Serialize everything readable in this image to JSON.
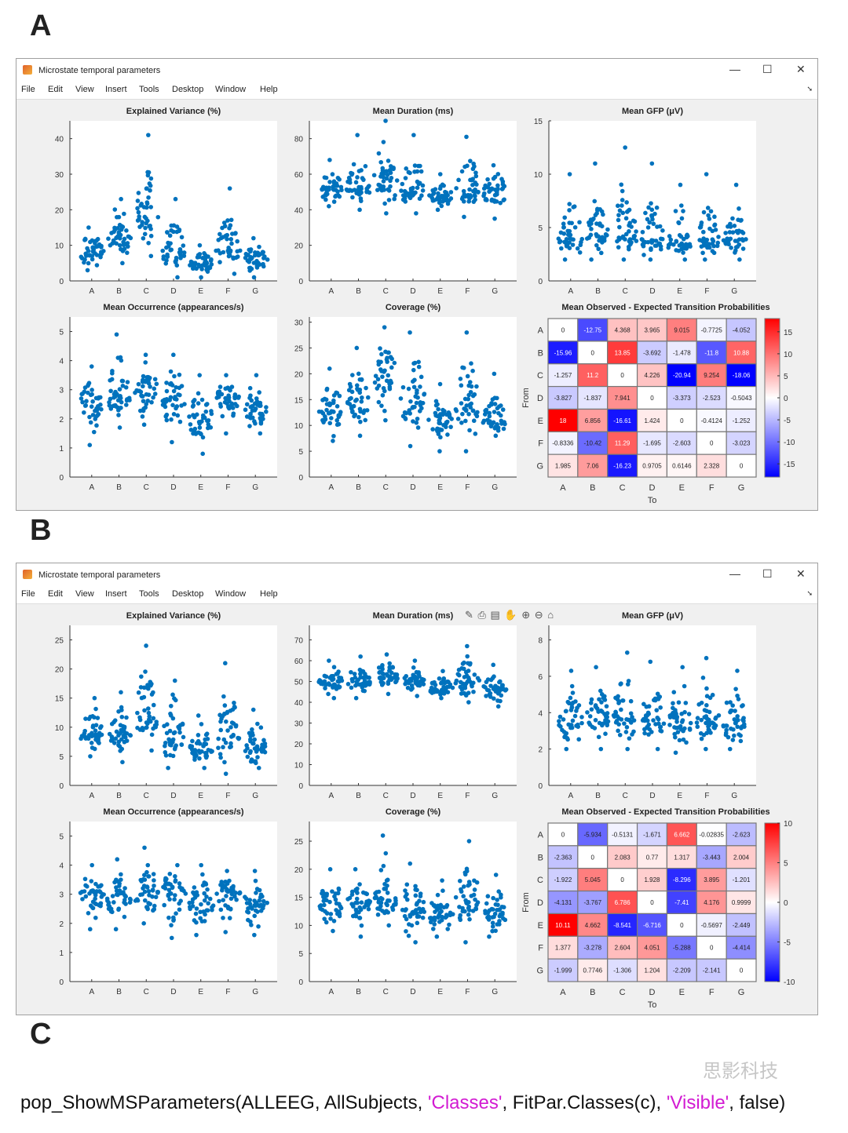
{
  "labels": {
    "A": "A",
    "B": "B",
    "C": "C"
  },
  "window": {
    "title": "Microstate temporal parameters",
    "menu": [
      "File",
      "Edit",
      "View",
      "Insert",
      "Tools",
      "Desktop",
      "Window",
      "Help"
    ],
    "minimize": "—",
    "maximize": "☐",
    "close": "✕"
  },
  "axes_toolbar": "✎ ⎙ ▤ ✋ ⊕ ⊖ ⌂",
  "code": {
    "func": "pop_ShowMSParameters(ALLEEG, AllSubjects, ",
    "s1": "'Classes'",
    "mid": ", FitPar.Classes(c), ",
    "s2": "'Visible'",
    "end": ", false)"
  },
  "watermark": "思影科技",
  "colors": {
    "dots": "#0072bd",
    "neg": "#0000ff",
    "pos": "#ff0000"
  },
  "chart_data": [
    {
      "panel": "A",
      "charts": [
        {
          "type": "scatter",
          "title": "Explained Variance (%)",
          "ylim": [
            0,
            45
          ],
          "yticks": [
            0,
            10,
            20,
            30,
            40
          ],
          "categories": [
            "A",
            "B",
            "C",
            "D",
            "E",
            "F",
            "G"
          ],
          "center": [
            8,
            12,
            18,
            8,
            5,
            9,
            6
          ],
          "min": [
            3,
            5,
            7,
            1,
            1,
            2,
            1
          ],
          "max": [
            15,
            23,
            41,
            23,
            10,
            26,
            12
          ]
        },
        {
          "type": "scatter",
          "title": "Mean Duration (ms)",
          "ylim": [
            0,
            90
          ],
          "yticks": [
            0,
            20,
            40,
            60,
            80
          ],
          "categories": [
            "A",
            "B",
            "C",
            "D",
            "E",
            "F",
            "G"
          ],
          "center": [
            52,
            53,
            57,
            52,
            48,
            52,
            50
          ],
          "min": [
            42,
            40,
            38,
            38,
            40,
            36,
            35
          ],
          "max": [
            68,
            82,
            90,
            82,
            60,
            81,
            65
          ]
        },
        {
          "type": "scatter",
          "title": "Mean GFP (μV)",
          "ylim": [
            0,
            15
          ],
          "yticks": [
            0,
            5,
            10,
            15
          ],
          "categories": [
            "A",
            "B",
            "C",
            "D",
            "E",
            "F",
            "G"
          ],
          "center": [
            4,
            4.5,
            4.5,
            4,
            3.5,
            4,
            4
          ],
          "min": [
            2,
            2,
            2,
            2,
            2,
            2,
            2
          ],
          "max": [
            10,
            11,
            12.5,
            11,
            9,
            10,
            9
          ]
        },
        {
          "type": "scatter",
          "title": "Mean Occurrence (appearances/s)",
          "ylim": [
            0,
            5.5
          ],
          "yticks": [
            0,
            1,
            2,
            3,
            4,
            5
          ],
          "categories": [
            "A",
            "B",
            "C",
            "D",
            "E",
            "F",
            "G"
          ],
          "center": [
            2.5,
            2.8,
            3,
            2.7,
            2,
            2.7,
            2.3
          ],
          "min": [
            1.1,
            1.7,
            1.8,
            1.2,
            0.8,
            1.5,
            1.5
          ],
          "max": [
            3.8,
            4.9,
            4.2,
            4.2,
            3.5,
            3.5,
            3.5
          ]
        },
        {
          "type": "scatter",
          "title": "Coverage (%)",
          "ylim": [
            0,
            31
          ],
          "yticks": [
            0,
            5,
            10,
            15,
            20,
            25,
            30
          ],
          "categories": [
            "A",
            "B",
            "C",
            "D",
            "E",
            "F",
            "G"
          ],
          "center": [
            13,
            15,
            19,
            15,
            11,
            14,
            11
          ],
          "min": [
            7,
            8,
            11,
            6,
            5,
            5,
            8
          ],
          "max": [
            21,
            25,
            29,
            28,
            18,
            28,
            20
          ]
        },
        {
          "type": "heatmap",
          "title": "Mean Observed - Expected Transition Probabilities",
          "xlabel": "To",
          "ylabel": "From",
          "categories": [
            "A",
            "B",
            "C",
            "D",
            "E",
            "F",
            "G"
          ],
          "clim": [
            -18,
            18
          ],
          "cbticks": [
            -15,
            -10,
            -5,
            0,
            5,
            10,
            15
          ],
          "values": [
            [
              "0",
              "-12.75",
              "4.368",
              "3.965",
              "9.015",
              "-0.7725",
              "-4.052"
            ],
            [
              "-15.96",
              "0",
              "13.85",
              "-3.692",
              "-1.478",
              "-11.8",
              "10.88"
            ],
            [
              "-1.257",
              "11.2",
              "0",
              "4.226",
              "-20.94",
              "9.254",
              "-18.06"
            ],
            [
              "-3.827",
              "-1.837",
              "7.941",
              "0",
              "-3.373",
              "-2.523",
              "-0.5043"
            ],
            [
              "18",
              "6.856",
              "-16.61",
              "1.424",
              "0",
              "-0.4124",
              "-1.252"
            ],
            [
              "-0.8336",
              "-10.42",
              "11.29",
              "-1.695",
              "-2.603",
              "0",
              "-3.023"
            ],
            [
              "1.985",
              "7.06",
              "-16.23",
              "0.9705",
              "0.6146",
              "2.328",
              "0"
            ]
          ]
        }
      ]
    },
    {
      "panel": "B",
      "charts": [
        {
          "type": "scatter",
          "title": "Explained Variance (%)",
          "ylim": [
            0,
            27.5
          ],
          "yticks": [
            0,
            5,
            10,
            15,
            20,
            25
          ],
          "categories": [
            "A",
            "B",
            "C",
            "D",
            "E",
            "F",
            "G"
          ],
          "center": [
            9,
            9,
            12,
            8,
            6,
            9,
            7
          ],
          "min": [
            5,
            4,
            6,
            3,
            3,
            2,
            3
          ],
          "max": [
            15,
            16,
            24,
            18,
            12,
            21,
            13
          ]
        },
        {
          "type": "scatter",
          "title": "Mean Duration (ms)",
          "ylim": [
            0,
            77
          ],
          "yticks": [
            0,
            10,
            20,
            30,
            40,
            50,
            60,
            70
          ],
          "categories": [
            "A",
            "B",
            "C",
            "D",
            "E",
            "F",
            "G"
          ],
          "center": [
            50,
            50,
            52,
            50,
            47,
            50,
            47
          ],
          "min": [
            42,
            42,
            44,
            43,
            42,
            40,
            38
          ],
          "max": [
            60,
            62,
            63,
            60,
            55,
            67,
            58
          ]
        },
        {
          "type": "scatter",
          "title": "Mean GFP (μV)",
          "ylim": [
            0,
            8.8
          ],
          "yticks": [
            0,
            2,
            4,
            6,
            8
          ],
          "categories": [
            "A",
            "B",
            "C",
            "D",
            "E",
            "F",
            "G"
          ],
          "center": [
            3.5,
            3.7,
            4,
            3.7,
            3.5,
            3.8,
            3.5
          ],
          "min": [
            2,
            2,
            2,
            2,
            1.8,
            2,
            2
          ],
          "max": [
            6.3,
            6.5,
            7.3,
            6.8,
            6.5,
            7,
            6.3
          ]
        },
        {
          "type": "scatter",
          "title": "Mean Occurrence (appearances/s)",
          "ylim": [
            0,
            5.5
          ],
          "yticks": [
            0,
            1,
            2,
            3,
            4,
            5
          ],
          "categories": [
            "A",
            "B",
            "C",
            "D",
            "E",
            "F",
            "G"
          ],
          "center": [
            3,
            2.8,
            3,
            3,
            2.6,
            3,
            2.7
          ],
          "min": [
            1.8,
            1.8,
            2,
            1.5,
            1.6,
            1.7,
            1.6
          ],
          "max": [
            4,
            4.2,
            4.6,
            4,
            4,
            3.8,
            3.8
          ]
        },
        {
          "type": "scatter",
          "title": "Coverage (%)",
          "ylim": [
            0,
            28.5
          ],
          "yticks": [
            0,
            5,
            10,
            15,
            20,
            25
          ],
          "categories": [
            "A",
            "B",
            "C",
            "D",
            "E",
            "F",
            "G"
          ],
          "center": [
            14,
            14,
            15,
            13,
            12,
            15,
            12
          ],
          "min": [
            9,
            8,
            10,
            7,
            8,
            7,
            8
          ],
          "max": [
            20,
            20,
            26,
            21,
            18,
            25,
            19
          ]
        },
        {
          "type": "heatmap",
          "title": "Mean Observed - Expected Transition Probabilities",
          "xlabel": "To",
          "ylabel": "From",
          "categories": [
            "A",
            "B",
            "C",
            "D",
            "E",
            "F",
            "G"
          ],
          "clim": [
            -10,
            10
          ],
          "cbticks": [
            -10,
            -5,
            0,
            5,
            10
          ],
          "values": [
            [
              "0",
              "-5.934",
              "-0.5131",
              "-1.671",
              "6.662",
              "-0.02835",
              "-2.623"
            ],
            [
              "-2.363",
              "0",
              "2.083",
              "0.77",
              "1.317",
              "-3.443",
              "2.004"
            ],
            [
              "-1.922",
              "5.045",
              "0",
              "1.928",
              "-8.296",
              "3.895",
              "-1.201"
            ],
            [
              "-4.131",
              "-3.767",
              "6.786",
              "0",
              "-7.41",
              "4.176",
              "0.9999"
            ],
            [
              "10.11",
              "4.662",
              "-8.541",
              "-6.716",
              "0",
              "-0.5697",
              "-2.449"
            ],
            [
              "1.377",
              "-3.278",
              "2.604",
              "4.051",
              "-5.288",
              "0",
              "-4.414"
            ],
            [
              "-1.999",
              "0.7746",
              "-1.306",
              "1.204",
              "-2.209",
              "-2.141",
              "0"
            ]
          ]
        }
      ]
    }
  ]
}
